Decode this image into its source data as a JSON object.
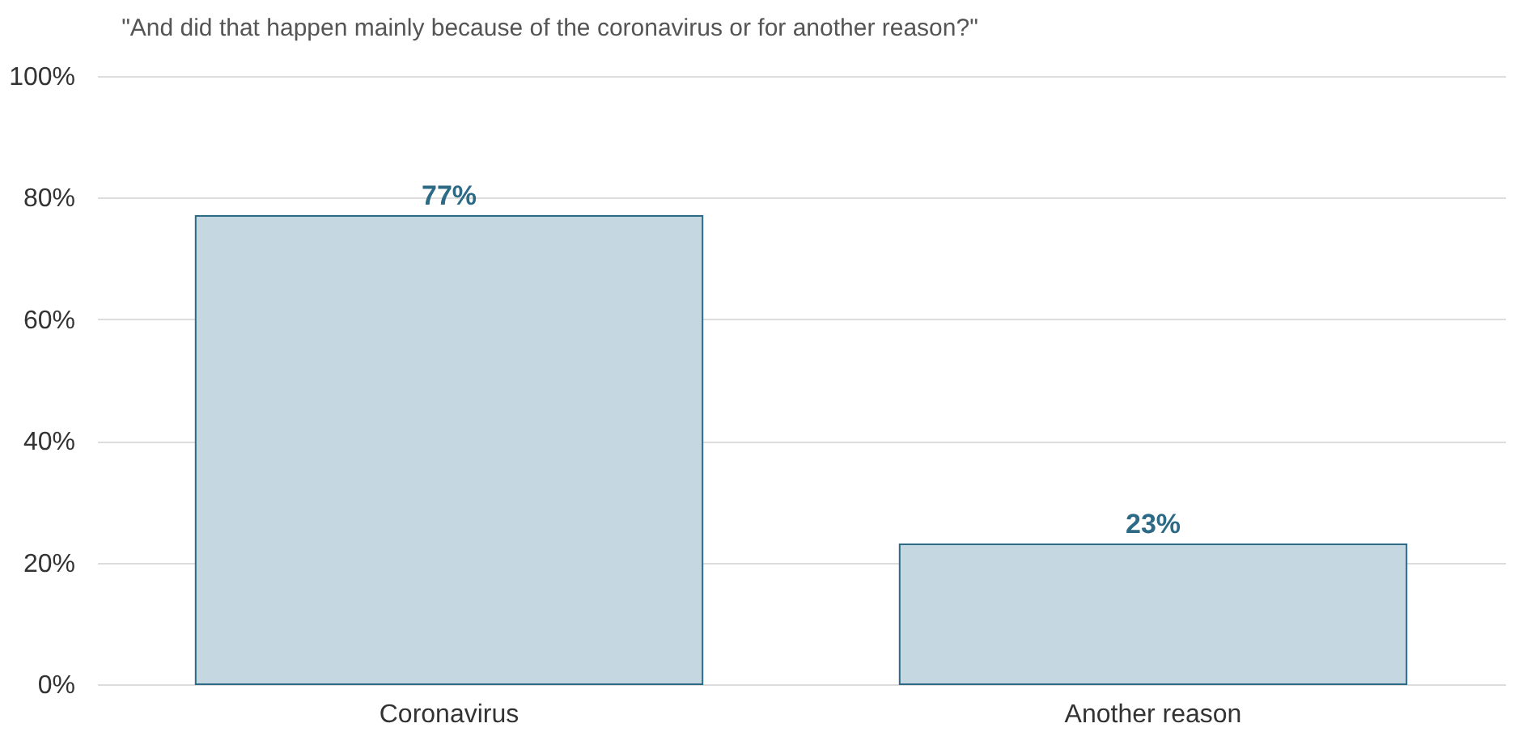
{
  "chart_data": {
    "type": "bar",
    "title": "\"And did that happen mainly because of the coronavirus or for another reason?\"",
    "categories": [
      "Coronavirus",
      "Another reason"
    ],
    "values": [
      77,
      23
    ],
    "value_labels": [
      "77%",
      "23%"
    ],
    "color": "#c5d8e2",
    "ylim": [
      0,
      100
    ],
    "yticks": [
      {
        "value": 0,
        "label": "0%"
      },
      {
        "value": 20,
        "label": "20%"
      },
      {
        "value": 40,
        "label": "40%"
      },
      {
        "value": 60,
        "label": "60%"
      },
      {
        "value": 80,
        "label": "80%"
      },
      {
        "value": 100,
        "label": "100%"
      }
    ],
    "grid": "y"
  }
}
